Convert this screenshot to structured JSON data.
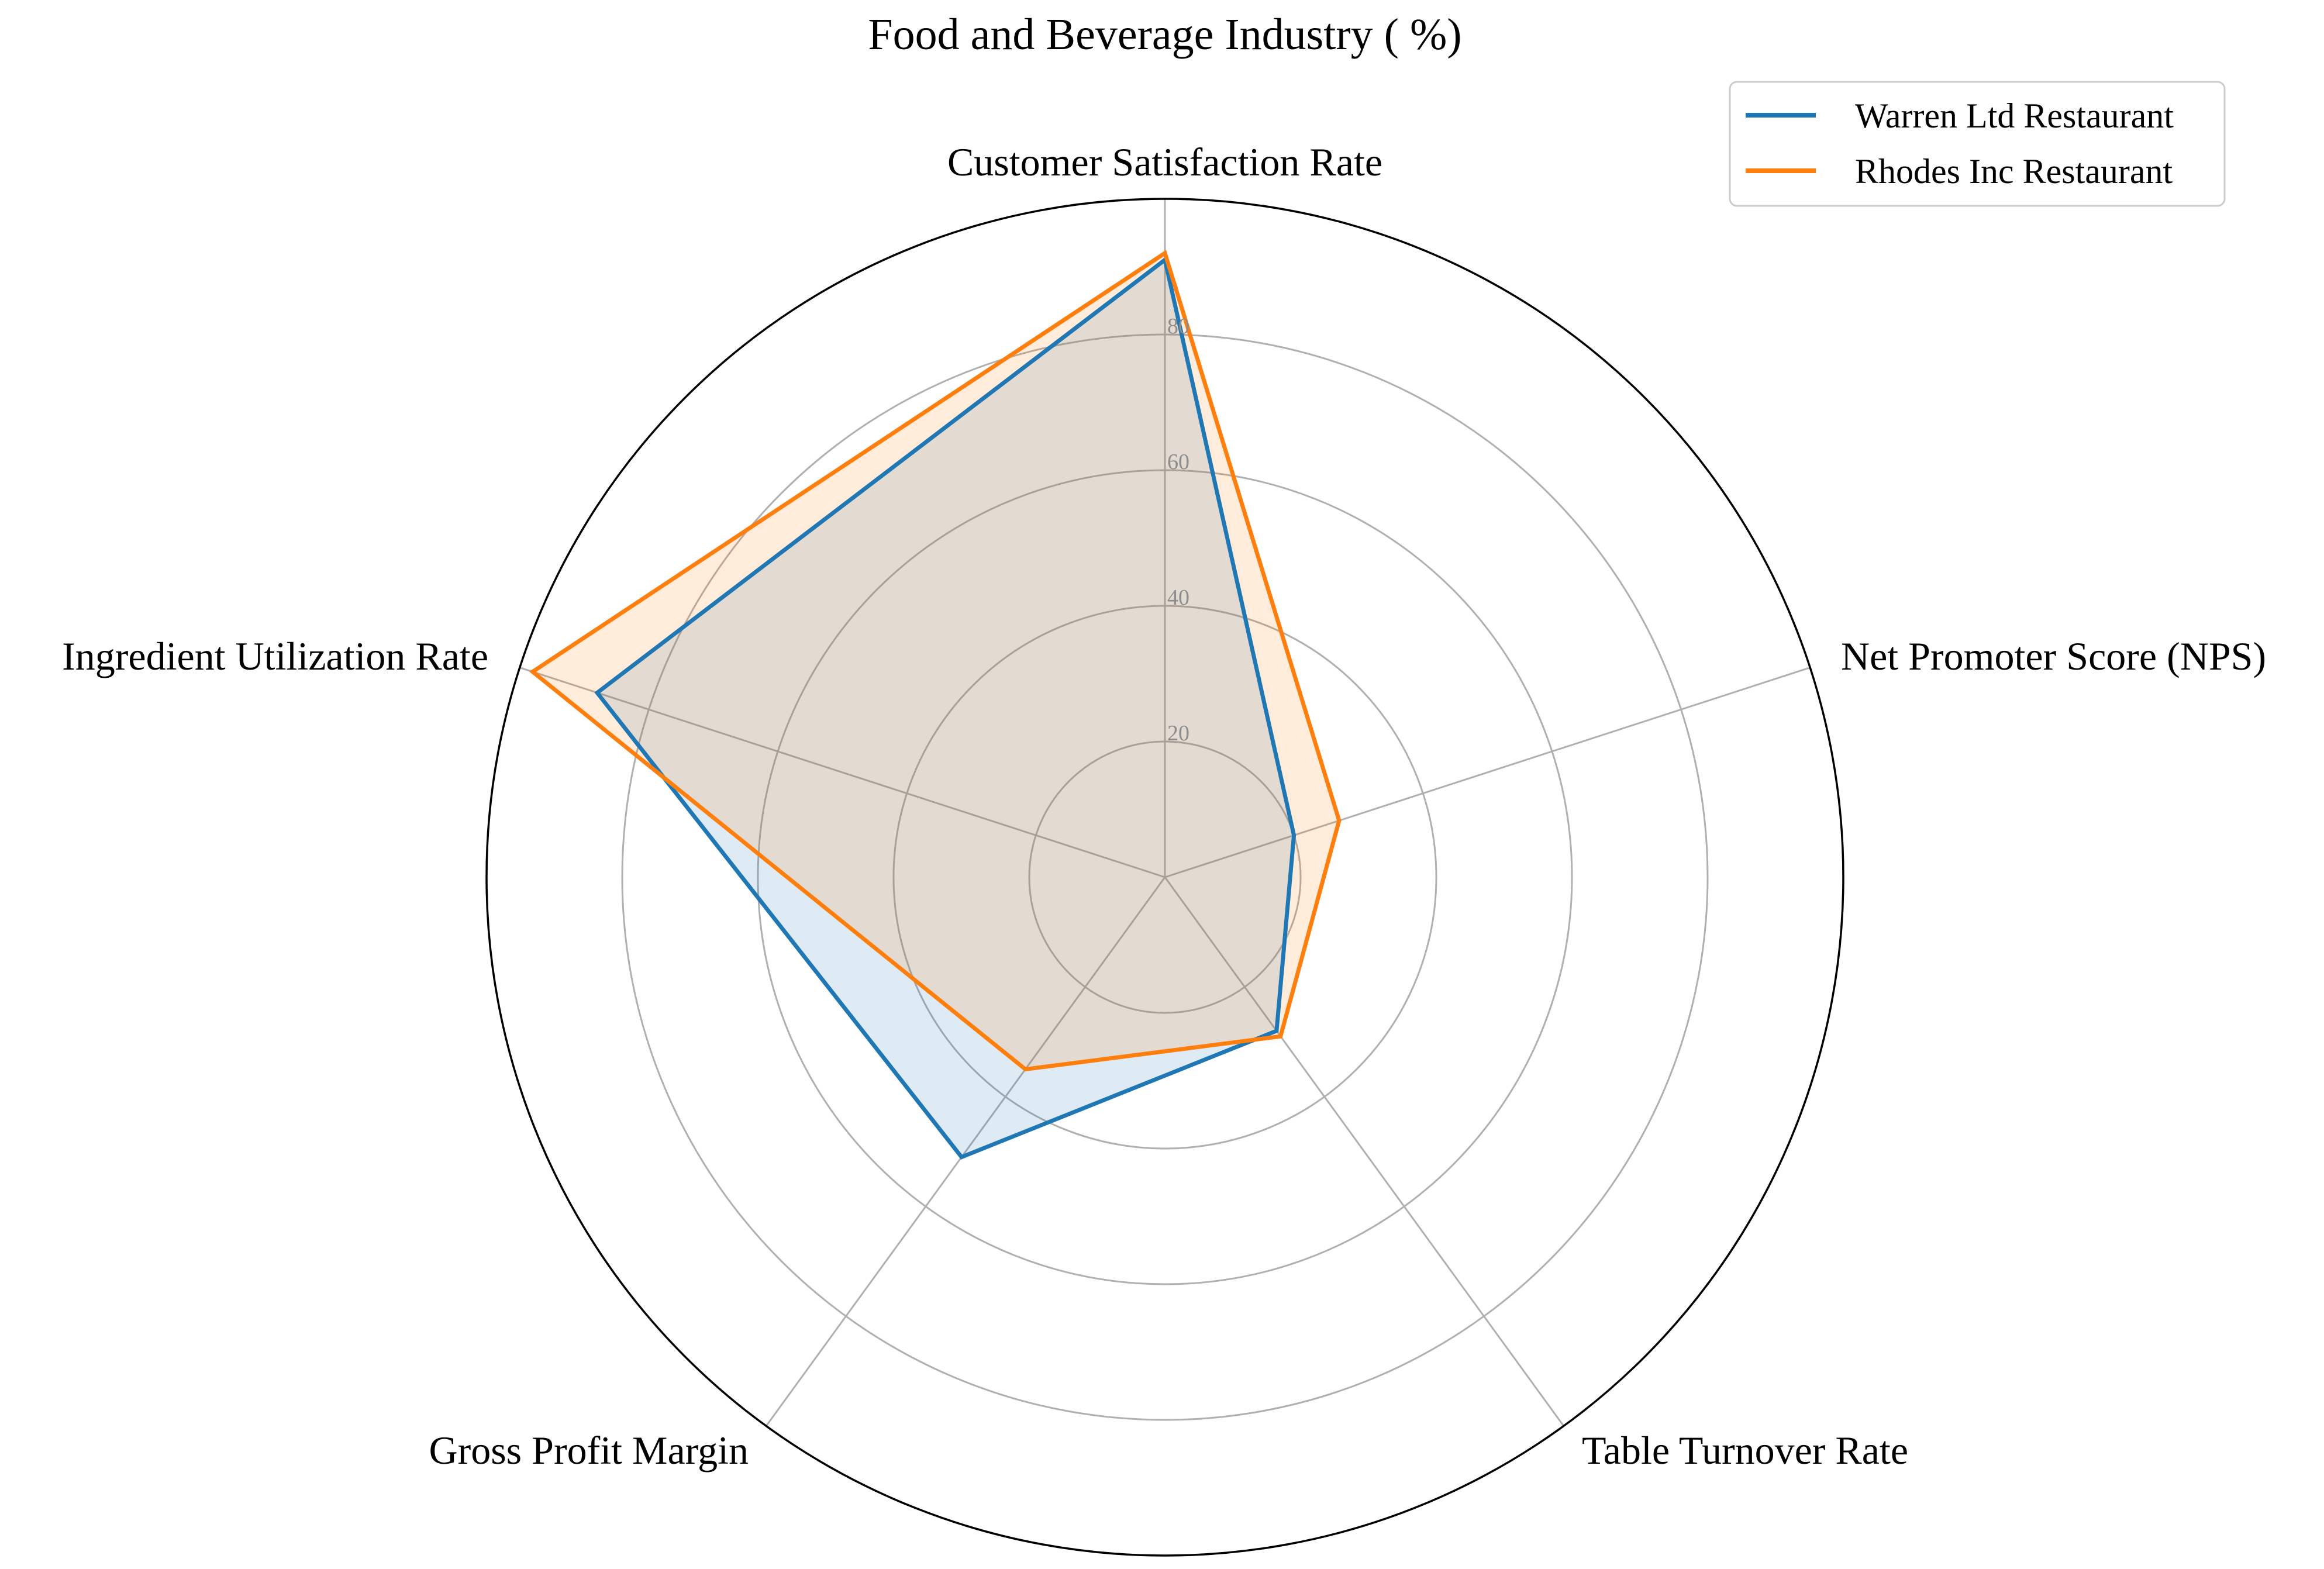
{
  "chart_data": {
    "type": "radar",
    "title": "Food and Beverage Industry ( %)",
    "axes": [
      "Customer Satisfaction Rate",
      "Net Promoter Score (NPS)",
      "Table Turnover Rate",
      "Gross Profit Margin",
      "Ingredient Utilization Rate"
    ],
    "rlim": [
      0,
      100
    ],
    "rticks": [
      20,
      40,
      60,
      80
    ],
    "grid": true,
    "legend_position": "top-right",
    "series": [
      {
        "name": "Warren Ltd Restaurant",
        "color": "#1f77b4",
        "values": [
          91,
          20,
          28,
          51,
          88
        ]
      },
      {
        "name": "Rhodes Inc Restaurant",
        "color": "#ff7f0e",
        "values": [
          92,
          27,
          29,
          35,
          98
        ]
      }
    ]
  }
}
